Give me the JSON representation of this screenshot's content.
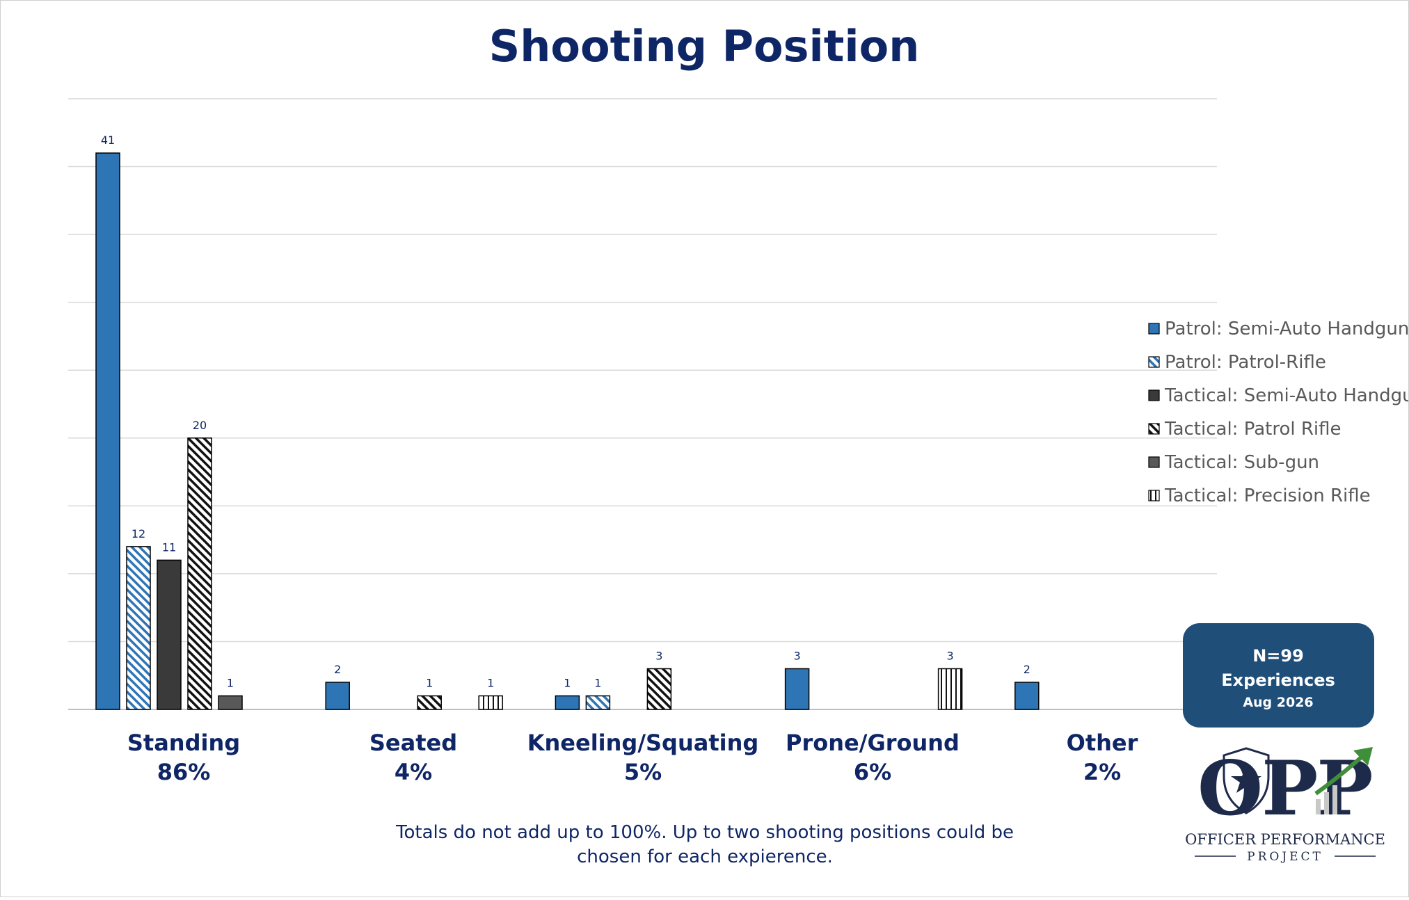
{
  "chart_data": {
    "type": "bar",
    "title": "Shooting Position",
    "categories": [
      "Standing",
      "Seated",
      "Kneeling/Squating",
      "Prone/Ground",
      "Other"
    ],
    "category_percents": [
      "86%",
      "4%",
      "5%",
      "6%",
      "2%"
    ],
    "ylim": [
      0,
      45
    ],
    "grid": true,
    "legend_position": "right",
    "series": [
      {
        "name": "Patrol: Semi-Auto Handgun",
        "values": [
          41,
          2,
          1,
          3,
          2
        ],
        "color": "#2e75b6",
        "pattern": "solid-blue"
      },
      {
        "name": "Patrol: Patrol-Rifle",
        "values": [
          12,
          null,
          1,
          null,
          null
        ],
        "color": "#2e75b6",
        "pattern": "blue-diagonal-hatch"
      },
      {
        "name": "Tactical: Semi-Auto Handgun",
        "values": [
          11,
          null,
          null,
          null,
          null
        ],
        "color": "#3a3a3a",
        "pattern": "solid-dark"
      },
      {
        "name": "Tactical: Patrol Rifle",
        "values": [
          20,
          1,
          3,
          null,
          null
        ],
        "color": "#000000",
        "pattern": "black-diagonal-hatch"
      },
      {
        "name": "Tactical: Sub-gun",
        "values": [
          1,
          null,
          null,
          null,
          null
        ],
        "color": "#595959",
        "pattern": "solid-gray"
      },
      {
        "name": "Tactical: Precision Rifle",
        "values": [
          null,
          1,
          null,
          3,
          null
        ],
        "color": "#000000",
        "pattern": "vertical-lines"
      }
    ],
    "note": [
      "Totals do not add up to 100%. Up to two shooting positions could be",
      "chosen for each expierence."
    ]
  },
  "badge": {
    "n": "N=99",
    "label": "Experiences",
    "date": "Aug 2026",
    "color": "#1f4e79"
  },
  "logo": {
    "letters": "OPP",
    "line1": "OFFICER PERFORMANCE",
    "line2": "PROJECT"
  }
}
